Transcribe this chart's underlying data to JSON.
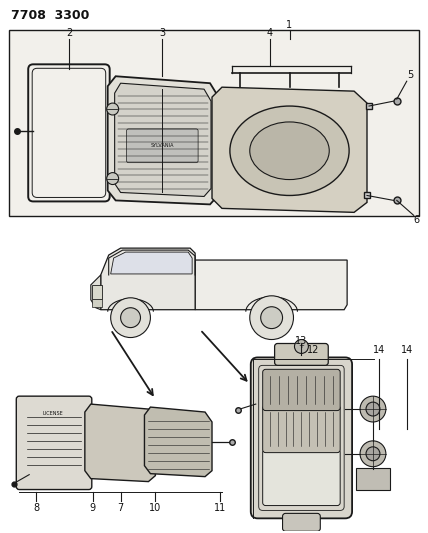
{
  "title": "7708  3300",
  "bg_color": "#ffffff",
  "line_color": "#1a1a1a",
  "text_color": "#111111",
  "figsize": [
    4.28,
    5.33
  ],
  "dpi": 100
}
